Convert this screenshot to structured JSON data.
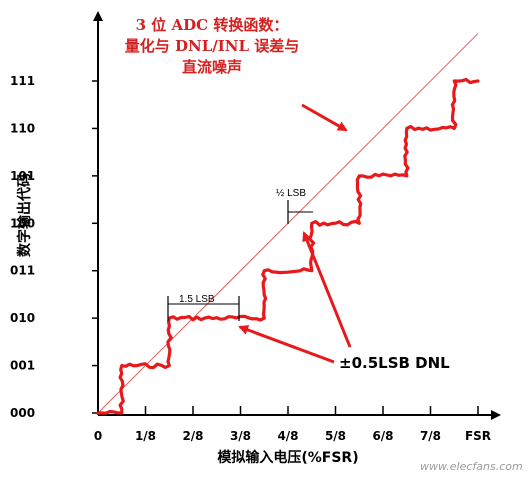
{
  "chart_data": {
    "type": "line",
    "title_lines": [
      "3 位 ADC 转换函数：",
      "量化与 DNL/INL 误差与",
      "直流噪声"
    ],
    "xlabel": "模拟输入电压(%FSR)",
    "ylabel": "数字输出代码",
    "x_ticks": [
      "0",
      "1/8",
      "2/8",
      "3/8",
      "4/8",
      "5/8",
      "6/8",
      "7/8",
      "FSR"
    ],
    "y_ticks": [
      "000",
      "001",
      "010",
      "011",
      "100",
      "101",
      "110",
      "111"
    ],
    "xlim": [
      0,
      1
    ],
    "ylim": [
      0,
      7
    ],
    "ideal_line": {
      "x": [
        0,
        1
      ],
      "y": [
        0,
        8
      ]
    },
    "series": [
      {
        "x": [
          0.0,
          0.0625,
          0.0625,
          0.1875,
          0.1875,
          0.4375,
          0.4375,
          0.5625,
          0.5625,
          0.6875,
          0.6875,
          0.8125,
          0.8125,
          0.9375,
          0.9375,
          1.0
        ],
        "y": [
          0,
          0,
          1,
          1,
          2,
          2,
          3,
          3,
          4,
          4,
          5,
          5,
          6,
          6,
          7,
          7
        ]
      }
    ],
    "annotations": {
      "lsb_1_5": "1.5 LSB",
      "lsb_half": "½ LSB",
      "dnl": "±0.5LSB DNL"
    },
    "colors": {
      "series": "#e8191b",
      "ideal": "#e06060",
      "arrow": "#e8191b",
      "title": "#d42020"
    }
  },
  "watermark": "www.elecfans.com"
}
